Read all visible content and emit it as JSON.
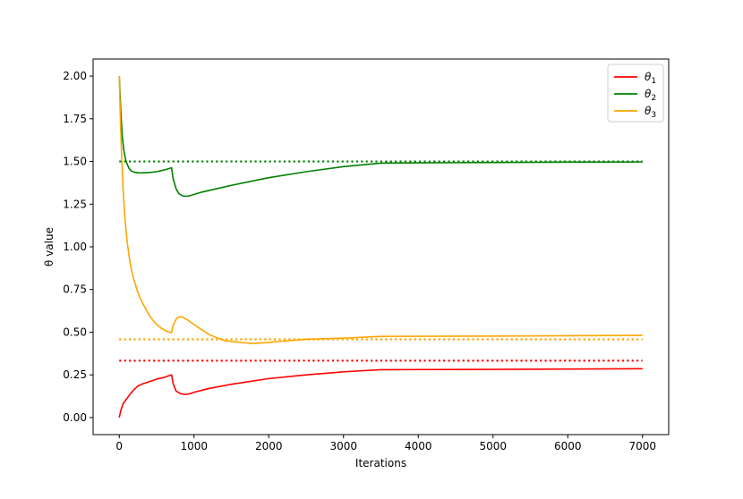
{
  "chart_data": {
    "type": "line",
    "xlabel": "Iterations",
    "ylabel": "θ value",
    "xlim": [
      -350,
      7350
    ],
    "ylim": [
      -0.1,
      2.1
    ],
    "xticks": [
      0,
      1000,
      2000,
      3000,
      4000,
      5000,
      6000,
      7000
    ],
    "yticks": [
      0.0,
      0.25,
      0.5,
      0.75,
      1.0,
      1.25,
      1.5,
      1.75,
      2.0
    ],
    "xtick_labels": [
      "0",
      "1000",
      "2000",
      "3000",
      "4000",
      "5000",
      "6000",
      "7000"
    ],
    "ytick_labels": [
      "0.00",
      "0.25",
      "0.50",
      "0.75",
      "1.00",
      "1.25",
      "1.50",
      "1.75",
      "2.00"
    ],
    "grid": false,
    "legend_position": "top-right",
    "series": [
      {
        "name": "θ",
        "subscript": "1",
        "color": "#ff0000",
        "target": 0.333,
        "points": [
          [
            0,
            0.0
          ],
          [
            20,
            0.04
          ],
          [
            50,
            0.08
          ],
          [
            100,
            0.11
          ],
          [
            150,
            0.14
          ],
          [
            200,
            0.165
          ],
          [
            250,
            0.185
          ],
          [
            300,
            0.195
          ],
          [
            400,
            0.21
          ],
          [
            500,
            0.225
          ],
          [
            600,
            0.235
          ],
          [
            700,
            0.25
          ],
          [
            720,
            0.2
          ],
          [
            760,
            0.155
          ],
          [
            820,
            0.14
          ],
          [
            880,
            0.135
          ],
          [
            950,
            0.14
          ],
          [
            1000,
            0.148
          ],
          [
            1200,
            0.17
          ],
          [
            1500,
            0.195
          ],
          [
            2000,
            0.228
          ],
          [
            2500,
            0.25
          ],
          [
            3000,
            0.268
          ],
          [
            3500,
            0.28
          ],
          [
            4000,
            0.281
          ],
          [
            5000,
            0.282
          ],
          [
            6000,
            0.284
          ],
          [
            7000,
            0.286
          ]
        ]
      },
      {
        "name": "θ",
        "subscript": "2",
        "color": "#008000",
        "target": 1.5,
        "points": [
          [
            0,
            2.0
          ],
          [
            20,
            1.8
          ],
          [
            40,
            1.65
          ],
          [
            60,
            1.57
          ],
          [
            80,
            1.52
          ],
          [
            100,
            1.49
          ],
          [
            130,
            1.46
          ],
          [
            160,
            1.445
          ],
          [
            200,
            1.437
          ],
          [
            250,
            1.433
          ],
          [
            300,
            1.433
          ],
          [
            400,
            1.435
          ],
          [
            500,
            1.44
          ],
          [
            600,
            1.45
          ],
          [
            700,
            1.463
          ],
          [
            720,
            1.4
          ],
          [
            760,
            1.34
          ],
          [
            800,
            1.31
          ],
          [
            850,
            1.298
          ],
          [
            900,
            1.296
          ],
          [
            950,
            1.3
          ],
          [
            1000,
            1.307
          ],
          [
            1100,
            1.32
          ],
          [
            1300,
            1.34
          ],
          [
            1500,
            1.36
          ],
          [
            2000,
            1.405
          ],
          [
            2500,
            1.44
          ],
          [
            3000,
            1.47
          ],
          [
            3500,
            1.49
          ],
          [
            4000,
            1.492
          ],
          [
            5000,
            1.494
          ],
          [
            6000,
            1.496
          ],
          [
            7000,
            1.497
          ]
        ]
      },
      {
        "name": "θ",
        "subscript": "3",
        "color": "#ffa500",
        "target": 0.458,
        "points": [
          [
            0,
            2.0
          ],
          [
            15,
            1.75
          ],
          [
            30,
            1.55
          ],
          [
            50,
            1.35
          ],
          [
            75,
            1.17
          ],
          [
            100,
            1.05
          ],
          [
            130,
            0.95
          ],
          [
            160,
            0.87
          ],
          [
            200,
            0.8
          ],
          [
            250,
            0.73
          ],
          [
            300,
            0.68
          ],
          [
            350,
            0.64
          ],
          [
            400,
            0.6
          ],
          [
            450,
            0.57
          ],
          [
            500,
            0.545
          ],
          [
            550,
            0.527
          ],
          [
            600,
            0.513
          ],
          [
            650,
            0.503
          ],
          [
            700,
            0.497
          ],
          [
            720,
            0.54
          ],
          [
            760,
            0.575
          ],
          [
            800,
            0.59
          ],
          [
            850,
            0.588
          ],
          [
            900,
            0.575
          ],
          [
            1000,
            0.545
          ],
          [
            1100,
            0.515
          ],
          [
            1200,
            0.487
          ],
          [
            1300,
            0.468
          ],
          [
            1400,
            0.452
          ],
          [
            1500,
            0.445
          ],
          [
            1700,
            0.437
          ],
          [
            1800,
            0.434
          ],
          [
            2000,
            0.44
          ],
          [
            2200,
            0.448
          ],
          [
            2500,
            0.458
          ],
          [
            3000,
            0.465
          ],
          [
            3500,
            0.475
          ],
          [
            4000,
            0.476
          ],
          [
            5000,
            0.477
          ],
          [
            6000,
            0.479
          ],
          [
            7000,
            0.481
          ]
        ]
      }
    ]
  }
}
